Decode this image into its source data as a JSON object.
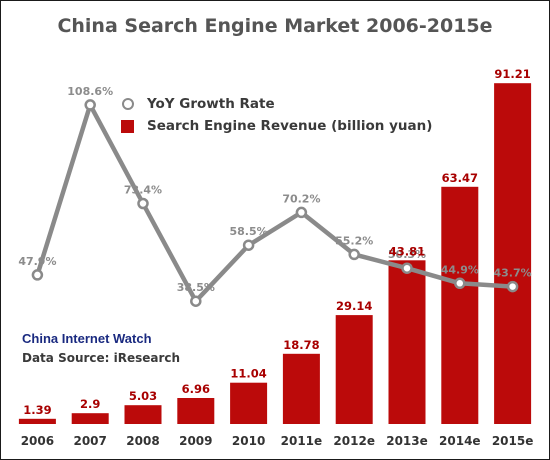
{
  "chart_data": {
    "type": "bar",
    "title": "China Search Engine Market 2006-2015e",
    "categories": [
      "2006",
      "2007",
      "2008",
      "2009",
      "2010",
      "2011e",
      "2012e",
      "2013e",
      "2014e",
      "2015e"
    ],
    "series": [
      {
        "name": "Search Engine Revenue (billion yuan)",
        "type": "bar",
        "values": [
          1.39,
          2.9,
          5.03,
          6.96,
          11.04,
          18.78,
          29.14,
          43.81,
          63.47,
          91.21
        ],
        "labels": [
          "1.39",
          "2.9",
          "5.03",
          "6.96",
          "11.04",
          "18.78",
          "29.14",
          "43.81",
          "63.47",
          "91.21"
        ],
        "color": "#bb0a0a"
      },
      {
        "name": "YoY Growth Rate",
        "type": "line",
        "values": [
          47.9,
          108.6,
          73.4,
          38.5,
          58.5,
          70.2,
          55.2,
          50.3,
          44.9,
          43.7
        ],
        "labels": [
          "47.9%",
          "108.6%",
          "73.4%",
          "38.5%",
          "58.5%",
          "70.2%",
          "55.2%",
          "50.3%",
          "44.9%",
          "43.7%"
        ],
        "color": "#8a8a8a"
      }
    ],
    "bar_range": [
      0,
      95
    ],
    "line_range": [
      0,
      120
    ],
    "legend_position": "upper-left",
    "grid": false
  },
  "brand": "China Internet Watch",
  "source": "Data Source: iResearch"
}
